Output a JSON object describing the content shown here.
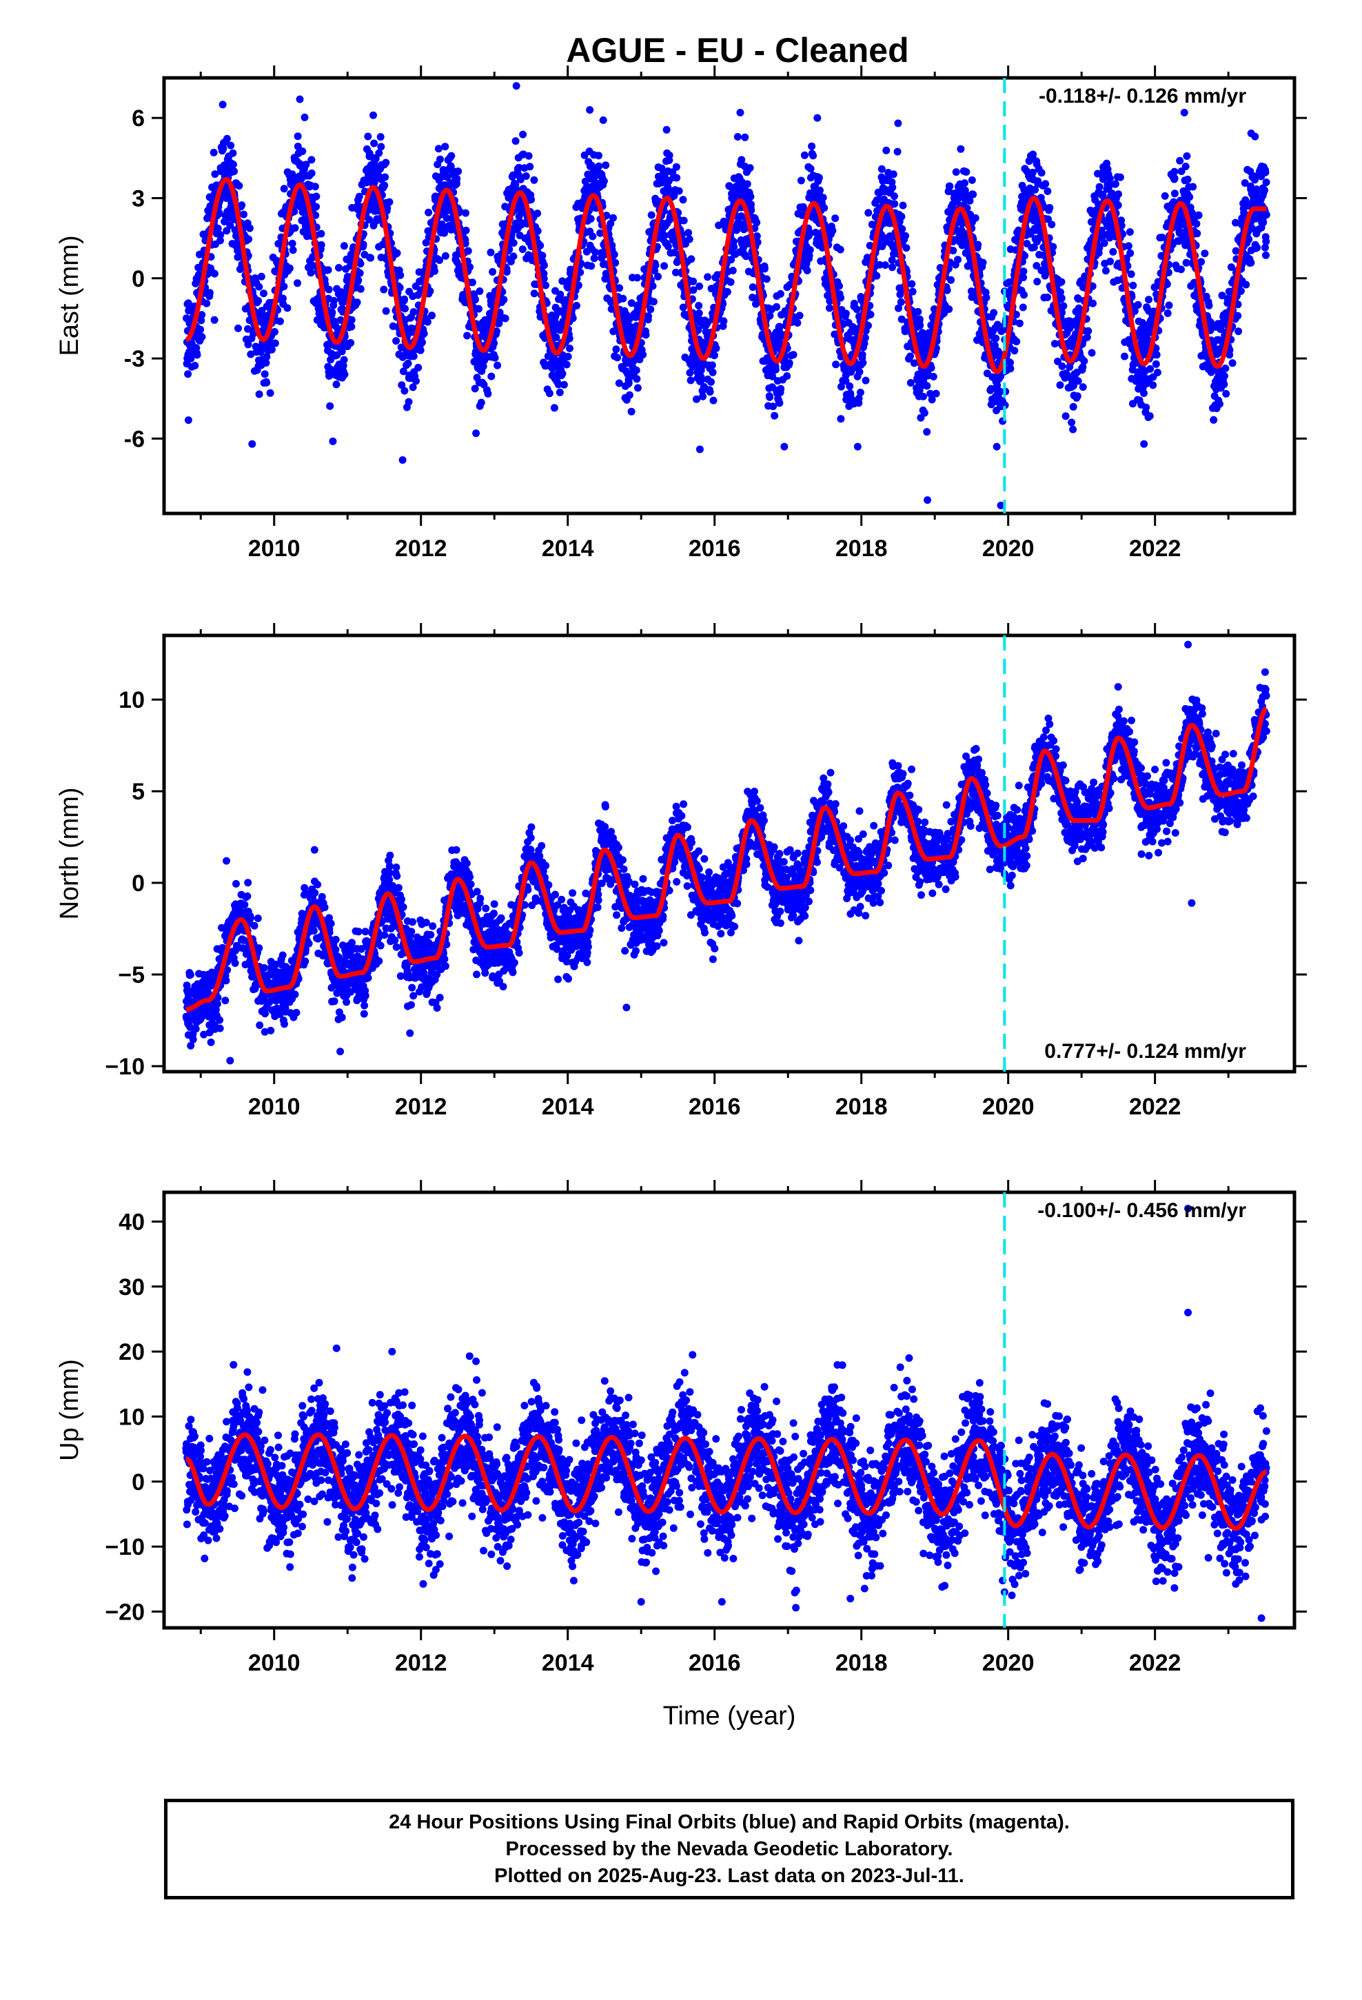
{
  "title": "AGUE  - EU - Cleaned",
  "footer": {
    "line1": "24 Hour Positions Using Final Orbits (blue) and Rapid Orbits (magenta).",
    "line2": "Processed by the Nevada Geodetic Laboratory.",
    "line3": "Plotted on 2025-Aug-23. Last data on 2023-Jul-11."
  },
  "colors": {
    "points": "#0000ff",
    "model": "#ff0000",
    "break": "#00e5e5"
  },
  "chart_data": [
    {
      "type": "scatter",
      "ylabel": "East (mm)",
      "xlabel": "",
      "xlim": [
        2008.5,
        2023.9
      ],
      "ylim": [
        -8.8,
        7.5
      ],
      "xticks": [
        2010,
        2012,
        2014,
        2016,
        2018,
        2020,
        2022
      ],
      "yticks": [
        -6,
        -3,
        0,
        3,
        6
      ],
      "ytick_labels": [
        "-6",
        "-3",
        "0",
        "3",
        "6"
      ],
      "rate_text": "-0.118+/- 0.126 mm/yr",
      "rate_position": "top-right",
      "break_line_x": 2019.95,
      "data_start": 2008.8,
      "data_end": 2023.52,
      "model": {
        "offset": 0.1,
        "trend": -0.118,
        "ann_sin": 2.1,
        "ann_cos": -2.2,
        "semi_sin": 0.5,
        "semi_cos": 0.2,
        "scatter": 1.0,
        "model_points": [
          [
            2008.8,
            -2.3
          ],
          [
            2009.35,
            3.7
          ],
          [
            2009.85,
            -2.3
          ],
          [
            2010.35,
            3.5
          ],
          [
            2010.85,
            -2.4
          ],
          [
            2011.35,
            3.4
          ],
          [
            2011.85,
            -2.6
          ],
          [
            2012.35,
            3.3
          ],
          [
            2012.85,
            -2.7
          ],
          [
            2013.35,
            3.2
          ],
          [
            2013.85,
            -2.8
          ],
          [
            2014.35,
            3.1
          ],
          [
            2014.85,
            -2.9
          ],
          [
            2015.35,
            3.0
          ],
          [
            2015.85,
            -3.0
          ],
          [
            2016.35,
            2.9
          ],
          [
            2016.85,
            -3.1
          ],
          [
            2017.35,
            2.8
          ],
          [
            2017.85,
            -3.2
          ],
          [
            2018.35,
            2.7
          ],
          [
            2018.85,
            -3.3
          ],
          [
            2019.35,
            2.6
          ],
          [
            2019.85,
            -3.5
          ],
          [
            2020.35,
            3.0
          ],
          [
            2020.85,
            -3.1
          ],
          [
            2021.35,
            2.9
          ],
          [
            2021.85,
            -3.2
          ],
          [
            2022.35,
            2.8
          ],
          [
            2022.85,
            -3.3
          ],
          [
            2023.35,
            2.6
          ]
        ]
      },
      "outliers": [
        [
          2009.3,
          6.5
        ],
        [
          2010.35,
          6.7
        ],
        [
          2011.35,
          6.1
        ],
        [
          2013.3,
          7.2
        ],
        [
          2014.3,
          6.3
        ],
        [
          2016.35,
          6.2
        ],
        [
          2017.4,
          6.0
        ],
        [
          2018.5,
          5.8
        ],
        [
          2022.4,
          6.2
        ],
        [
          2011.75,
          -6.8
        ],
        [
          2012.75,
          -5.8
        ],
        [
          2015.8,
          -6.4
        ],
        [
          2018.9,
          -8.3
        ],
        [
          2019.9,
          -8.5
        ],
        [
          2009.7,
          -6.2
        ],
        [
          2010.8,
          -6.1
        ],
        [
          2016.95,
          -6.3
        ],
        [
          2017.95,
          -6.3
        ],
        [
          2021.85,
          -6.2
        ]
      ]
    },
    {
      "type": "scatter",
      "ylabel": "North (mm)",
      "xlabel": "",
      "xlim": [
        2008.5,
        2023.9
      ],
      "ylim": [
        -10.3,
        13.5
      ],
      "xticks": [
        2010,
        2012,
        2014,
        2016,
        2018,
        2020,
        2022
      ],
      "yticks": [
        -10,
        -5,
        0,
        5,
        10
      ],
      "ytick_labels": [
        "−10",
        "−5",
        "0",
        "5",
        "10"
      ],
      "rate_text": "0.777+/- 0.124 mm/yr",
      "rate_position": "bottom-right",
      "break_line_x": 2019.95,
      "data_start": 2008.8,
      "data_end": 2023.52,
      "model": {
        "offset": -1.0,
        "trend": 0.777,
        "ann_sin": 0.8,
        "ann_cos": -1.5,
        "semi_sin": 0.7,
        "semi_cos": -0.9,
        "scatter": 0.9,
        "model_points": [
          [
            2008.8,
            -6.9
          ],
          [
            2009.1,
            -6.4
          ],
          [
            2009.55,
            -2.0
          ],
          [
            2009.9,
            -5.9
          ],
          [
            2010.2,
            -5.7
          ],
          [
            2010.55,
            -1.3
          ],
          [
            2010.9,
            -5.1
          ],
          [
            2011.2,
            -4.9
          ],
          [
            2011.55,
            -0.6
          ],
          [
            2011.9,
            -4.3
          ],
          [
            2012.2,
            -4.1
          ],
          [
            2012.5,
            0.2
          ],
          [
            2012.9,
            -3.5
          ],
          [
            2013.2,
            -3.4
          ],
          [
            2013.5,
            1.1
          ],
          [
            2013.9,
            -2.7
          ],
          [
            2014.2,
            -2.6
          ],
          [
            2014.5,
            1.8
          ],
          [
            2014.9,
            -1.9
          ],
          [
            2015.2,
            -1.8
          ],
          [
            2015.5,
            2.6
          ],
          [
            2015.9,
            -1.1
          ],
          [
            2016.2,
            -1.0
          ],
          [
            2016.5,
            3.4
          ],
          [
            2016.9,
            -0.3
          ],
          [
            2017.2,
            -0.2
          ],
          [
            2017.5,
            4.1
          ],
          [
            2017.9,
            0.5
          ],
          [
            2018.2,
            0.6
          ],
          [
            2018.5,
            4.9
          ],
          [
            2018.9,
            1.3
          ],
          [
            2019.2,
            1.4
          ],
          [
            2019.5,
            5.7
          ],
          [
            2019.9,
            2.0
          ],
          [
            2020.2,
            2.5
          ],
          [
            2020.5,
            7.2
          ],
          [
            2020.9,
            3.4
          ],
          [
            2021.2,
            3.4
          ],
          [
            2021.5,
            7.9
          ],
          [
            2021.9,
            4.1
          ],
          [
            2022.2,
            4.3
          ],
          [
            2022.5,
            8.6
          ],
          [
            2022.9,
            4.8
          ],
          [
            2023.2,
            5.0
          ],
          [
            2023.52,
            9.5
          ]
        ]
      },
      "outliers": [
        [
          2022.45,
          13.0
        ],
        [
          2022.5,
          -1.1
        ],
        [
          2009.4,
          -9.7
        ],
        [
          2010.9,
          -9.2
        ],
        [
          2011.85,
          -8.2
        ],
        [
          2014.8,
          -6.8
        ],
        [
          2009.35,
          1.2
        ],
        [
          2010.55,
          1.8
        ],
        [
          2023.5,
          11.5
        ]
      ]
    },
    {
      "type": "scatter",
      "ylabel": "Up (mm)",
      "xlabel": "Time (year)",
      "xlim": [
        2008.5,
        2023.9
      ],
      "ylim": [
        -22.5,
        44.5
      ],
      "xticks": [
        2010,
        2012,
        2014,
        2016,
        2018,
        2020,
        2022
      ],
      "yticks": [
        -20,
        -10,
        0,
        10,
        20,
        30,
        40
      ],
      "ytick_labels": [
        "−20",
        "−10",
        "0",
        "10",
        "20",
        "30",
        "40"
      ],
      "rate_text": "-0.100+/- 0.456 mm/yr",
      "rate_position": "top-right",
      "break_line_x": 2019.95,
      "data_start": 2008.8,
      "data_end": 2023.52,
      "model": {
        "offset": 1.5,
        "trend": -0.1,
        "ann_sin": -2.0,
        "ann_cos": -5.2,
        "semi_sin": 0.0,
        "semi_cos": 0.0,
        "scatter": 4.0,
        "model_points": [
          [
            2008.8,
            3.5
          ],
          [
            2009.1,
            -3.5
          ],
          [
            2009.6,
            7.2
          ],
          [
            2010.1,
            -4.0
          ],
          [
            2010.6,
            7.2
          ],
          [
            2011.1,
            -4.2
          ],
          [
            2011.6,
            7.1
          ],
          [
            2012.1,
            -4.3
          ],
          [
            2012.6,
            7.0
          ],
          [
            2013.1,
            -4.4
          ],
          [
            2013.6,
            6.9
          ],
          [
            2014.1,
            -4.5
          ],
          [
            2014.6,
            6.8
          ],
          [
            2015.1,
            -4.6
          ],
          [
            2015.6,
            6.7
          ],
          [
            2016.1,
            -4.7
          ],
          [
            2016.6,
            6.6
          ],
          [
            2017.1,
            -4.8
          ],
          [
            2017.6,
            6.5
          ],
          [
            2018.1,
            -4.9
          ],
          [
            2018.6,
            6.4
          ],
          [
            2019.1,
            -5.0
          ],
          [
            2019.6,
            6.3
          ],
          [
            2020.1,
            -6.8
          ],
          [
            2020.6,
            4.2
          ],
          [
            2021.1,
            -7.0
          ],
          [
            2021.6,
            4.1
          ],
          [
            2022.1,
            -7.1
          ],
          [
            2022.6,
            4.0
          ],
          [
            2023.1,
            -7.2
          ],
          [
            2023.52,
            1.5
          ]
        ]
      },
      "outliers": [
        [
          2022.45,
          42.0
        ],
        [
          2022.45,
          26.0
        ],
        [
          2010.85,
          20.5
        ],
        [
          2012.75,
          18.5
        ],
        [
          2015.7,
          19.5
        ],
        [
          2018.65,
          19.0
        ],
        [
          2015.0,
          -18.5
        ],
        [
          2016.1,
          -18.5
        ],
        [
          2017.85,
          -18.0
        ],
        [
          2023.45,
          -21.0
        ],
        [
          2020.05,
          -17.5
        ],
        [
          2019.95,
          -17.0
        ]
      ]
    }
  ]
}
